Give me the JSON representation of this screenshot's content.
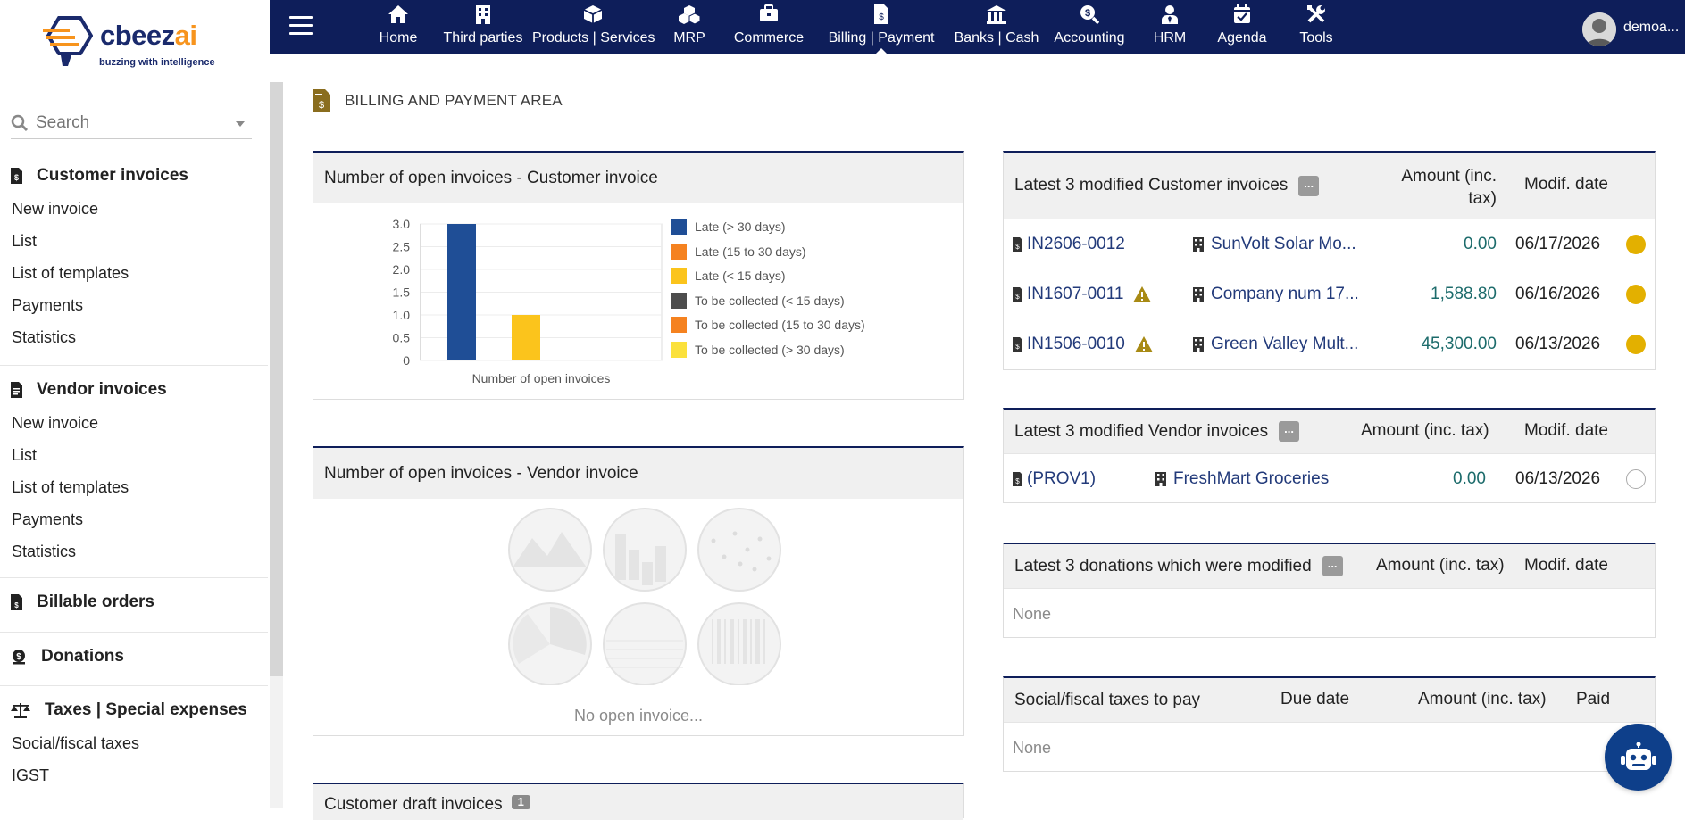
{
  "brand": {
    "name_main": "cbeez",
    "name_accent": "ai",
    "tagline": "buzzing with intelligence"
  },
  "search": {
    "placeholder": "Search"
  },
  "sidebar": {
    "customer": {
      "title": "Customer invoices",
      "items": [
        "New invoice",
        "List",
        "List of templates",
        "Payments",
        "Statistics"
      ]
    },
    "vendor": {
      "title": "Vendor invoices",
      "items": [
        "New invoice",
        "List",
        "List of templates",
        "Payments",
        "Statistics"
      ]
    },
    "billable": {
      "title": "Billable orders"
    },
    "donations": {
      "title": "Donations"
    },
    "taxes": {
      "title": "Taxes | Special expenses",
      "items": [
        "Social/fiscal taxes",
        "IGST"
      ]
    }
  },
  "nav": [
    {
      "label": "Home",
      "icon": "home-icon"
    },
    {
      "label": "Third parties",
      "icon": "building-icon"
    },
    {
      "label": "Products | Services",
      "icon": "cube-icon"
    },
    {
      "label": "MRP",
      "icon": "cubes-icon"
    },
    {
      "label": "Commerce",
      "icon": "briefcase-icon"
    },
    {
      "label": "Billing | Payment",
      "icon": "invoice-icon"
    },
    {
      "label": "Banks | Cash",
      "icon": "bank-icon"
    },
    {
      "label": "Accounting",
      "icon": "search-dollar-icon"
    },
    {
      "label": "HRM",
      "icon": "user-tie-icon"
    },
    {
      "label": "Agenda",
      "icon": "calendar-check-icon"
    },
    {
      "label": "Tools",
      "icon": "tools-icon"
    }
  ],
  "user": {
    "name": "demoa..."
  },
  "page": {
    "title": "BILLING AND PAYMENT AREA"
  },
  "customer_chart_box": {
    "title": "Number of open invoices - Customer invoice"
  },
  "vendor_chart_box": {
    "title": "Number of open invoices - Vendor invoice",
    "empty_text": "No open invoice..."
  },
  "draft_box": {
    "title": "Customer draft invoices",
    "count": "1"
  },
  "chart_data": {
    "type": "bar",
    "categories": [
      "Number of open invoices"
    ],
    "xlabel": "Number of open invoices",
    "ylim": [
      0,
      3
    ],
    "yticks": [
      "3.0",
      "2.5",
      "2.0",
      "1.5",
      "1.0",
      "0.5",
      "0"
    ],
    "grid": true,
    "legend_position": "right",
    "series": [
      {
        "name": "Late (> 30 days)",
        "color": "#1f4e96",
        "values": [
          3
        ]
      },
      {
        "name": "Late (15 to 30 days)",
        "color": "#f58220",
        "values": [
          0
        ]
      },
      {
        "name": "Late (< 15 days)",
        "color": "#fbc41c",
        "values": [
          1
        ]
      },
      {
        "name": "To be collected (< 15 days)",
        "color": "#4d4d4d",
        "values": [
          0
        ]
      },
      {
        "name": "To be collected (15 to 30 days)",
        "color": "#f58220",
        "values": [
          0
        ]
      },
      {
        "name": "To be collected (> 30 days)",
        "color": "#fbe13c",
        "values": [
          0
        ]
      }
    ]
  },
  "customer_invoices": {
    "title": "Latest 3 modified Customer invoices",
    "dots": "...",
    "col_amount_1": "Amount (inc.",
    "col_amount_2": "tax)",
    "col_date": "Modif. date",
    "rows": [
      {
        "ref": "IN2606-0012",
        "warning": false,
        "thirdparty": "SunVolt Solar Mo...",
        "amount": "0.00",
        "date": "06/17/2026"
      },
      {
        "ref": "IN1607-0011",
        "warning": true,
        "thirdparty": "Company num 17...",
        "amount": "1,588.80",
        "date": "06/16/2026"
      },
      {
        "ref": "IN1506-0010",
        "warning": true,
        "thirdparty": "Green Valley Mult...",
        "amount": "45,300.00",
        "date": "06/13/2026"
      }
    ]
  },
  "vendor_invoices": {
    "title": "Latest 3 modified Vendor invoices",
    "dots": "...",
    "col_amount": "Amount (inc. tax)",
    "col_date": "Modif. date",
    "rows": [
      {
        "ref": "(PROV1)",
        "thirdparty": "FreshMart Groceries",
        "amount": "0.00",
        "date": "06/13/2026"
      }
    ]
  },
  "donations": {
    "title": "Latest 3 donations which were modified",
    "dots": "...",
    "col_amount": "Amount (inc. tax)",
    "col_date": "Modif. date",
    "empty": "None"
  },
  "taxes_box": {
    "title": "Social/fiscal taxes to pay",
    "col_due": "Due date",
    "col_amount": "Amount (inc. tax)",
    "col_paid": "Paid",
    "empty": "None"
  }
}
